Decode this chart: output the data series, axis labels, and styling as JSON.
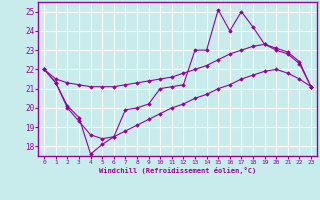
{
  "xlabel": "Windchill (Refroidissement éolien,°C)",
  "xlim": [
    -0.5,
    23.5
  ],
  "ylim": [
    17.5,
    25.5
  ],
  "yticks": [
    18,
    19,
    20,
    21,
    22,
    23,
    24,
    25
  ],
  "xticks": [
    0,
    1,
    2,
    3,
    4,
    5,
    6,
    7,
    8,
    9,
    10,
    11,
    12,
    13,
    14,
    15,
    16,
    17,
    18,
    19,
    20,
    21,
    22,
    23
  ],
  "bg_color": "#c8ecec",
  "line_color": "#990099",
  "grid_color": "#ffffff",
  "jagged_x": [
    0,
    1,
    2,
    3,
    4,
    5,
    6,
    7,
    8,
    9,
    10,
    11,
    12,
    13,
    14,
    15,
    16,
    17,
    18,
    19,
    20,
    21,
    22,
    23
  ],
  "jagged_y": [
    22.0,
    21.3,
    20.1,
    19.5,
    17.6,
    18.1,
    18.5,
    19.9,
    20.0,
    20.2,
    21.0,
    21.1,
    21.2,
    23.0,
    23.0,
    25.1,
    24.0,
    25.0,
    24.2,
    23.3,
    23.0,
    22.8,
    22.3,
    21.1
  ],
  "upper_x": [
    0,
    1,
    2,
    3,
    4,
    5,
    6,
    7,
    8,
    9,
    10,
    11,
    12,
    13,
    14,
    15,
    16,
    17,
    18,
    19,
    20,
    21,
    22,
    23
  ],
  "upper_y": [
    22.0,
    21.5,
    21.3,
    21.2,
    21.1,
    21.1,
    21.1,
    21.2,
    21.3,
    21.4,
    21.5,
    21.6,
    21.8,
    22.0,
    22.2,
    22.5,
    22.8,
    23.0,
    23.2,
    23.3,
    23.1,
    22.9,
    22.4,
    21.1
  ],
  "lower_x": [
    0,
    1,
    2,
    3,
    4,
    5,
    6,
    7,
    8,
    9,
    10,
    11,
    12,
    13,
    14,
    15,
    16,
    17,
    18,
    19,
    20,
    21,
    22,
    23
  ],
  "lower_y": [
    22.0,
    21.3,
    20.0,
    19.3,
    18.6,
    18.4,
    18.5,
    18.8,
    19.1,
    19.4,
    19.7,
    20.0,
    20.2,
    20.5,
    20.7,
    21.0,
    21.2,
    21.5,
    21.7,
    21.9,
    22.0,
    21.8,
    21.5,
    21.1
  ]
}
